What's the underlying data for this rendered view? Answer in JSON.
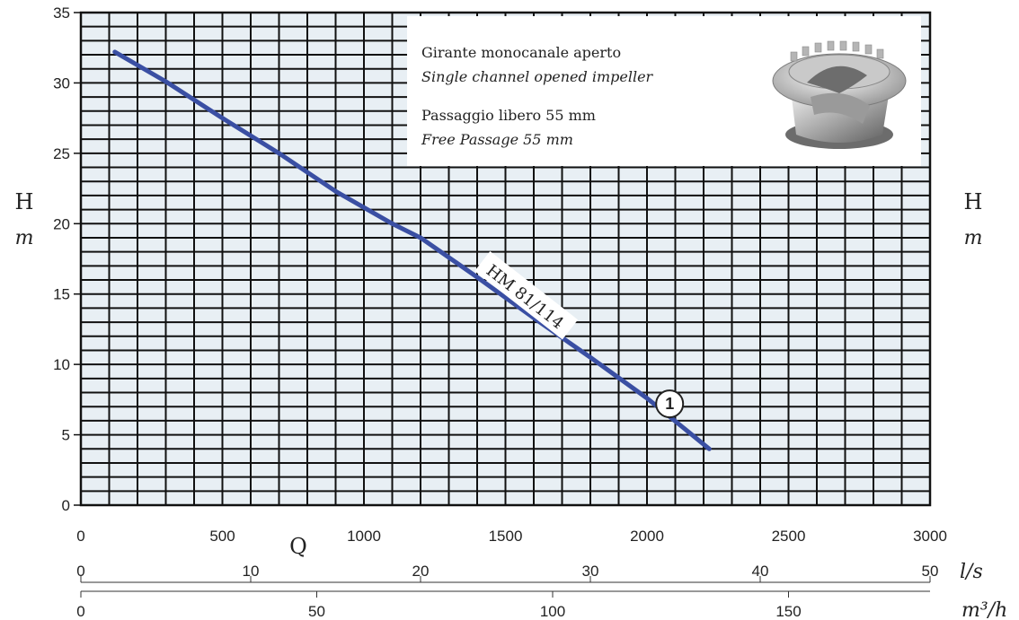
{
  "chart_data": {
    "type": "line",
    "xlabel": "Q",
    "ylabel": "H",
    "yunit": "m",
    "xlim": [
      0,
      3000
    ],
    "ylim": [
      0,
      35
    ],
    "x_ticks": [
      "0",
      "500",
      "1000",
      "1500",
      "2000",
      "2500",
      "3000"
    ],
    "y_ticks": [
      "0",
      "5",
      "10",
      "15",
      "20",
      "25",
      "30",
      "35"
    ],
    "secondary_axes": [
      {
        "unit": "l/s",
        "ticks": [
          "0",
          "10",
          "20",
          "30",
          "40",
          "50"
        ]
      },
      {
        "unit": "m³/h",
        "ticks": [
          "0",
          "50",
          "100",
          "150"
        ]
      }
    ],
    "grid": true,
    "series": [
      {
        "name": "HM 81/114",
        "color": "#3a4fa3",
        "marker": "1",
        "x": [
          120,
          300,
          500,
          700,
          900,
          1100,
          1200,
          1400,
          1600,
          1800,
          2000,
          2220
        ],
        "y": [
          32.2,
          30.1,
          27.5,
          25.0,
          22.3,
          20.0,
          19.0,
          16.2,
          13.3,
          10.5,
          7.6,
          4.0
        ]
      }
    ],
    "annotation": {
      "line1": "Girante monocanale aperto",
      "line2": "Single channel opened impeller",
      "line3": "Passaggio libero 55 mm",
      "line4": "Free Passage 55 mm"
    }
  }
}
